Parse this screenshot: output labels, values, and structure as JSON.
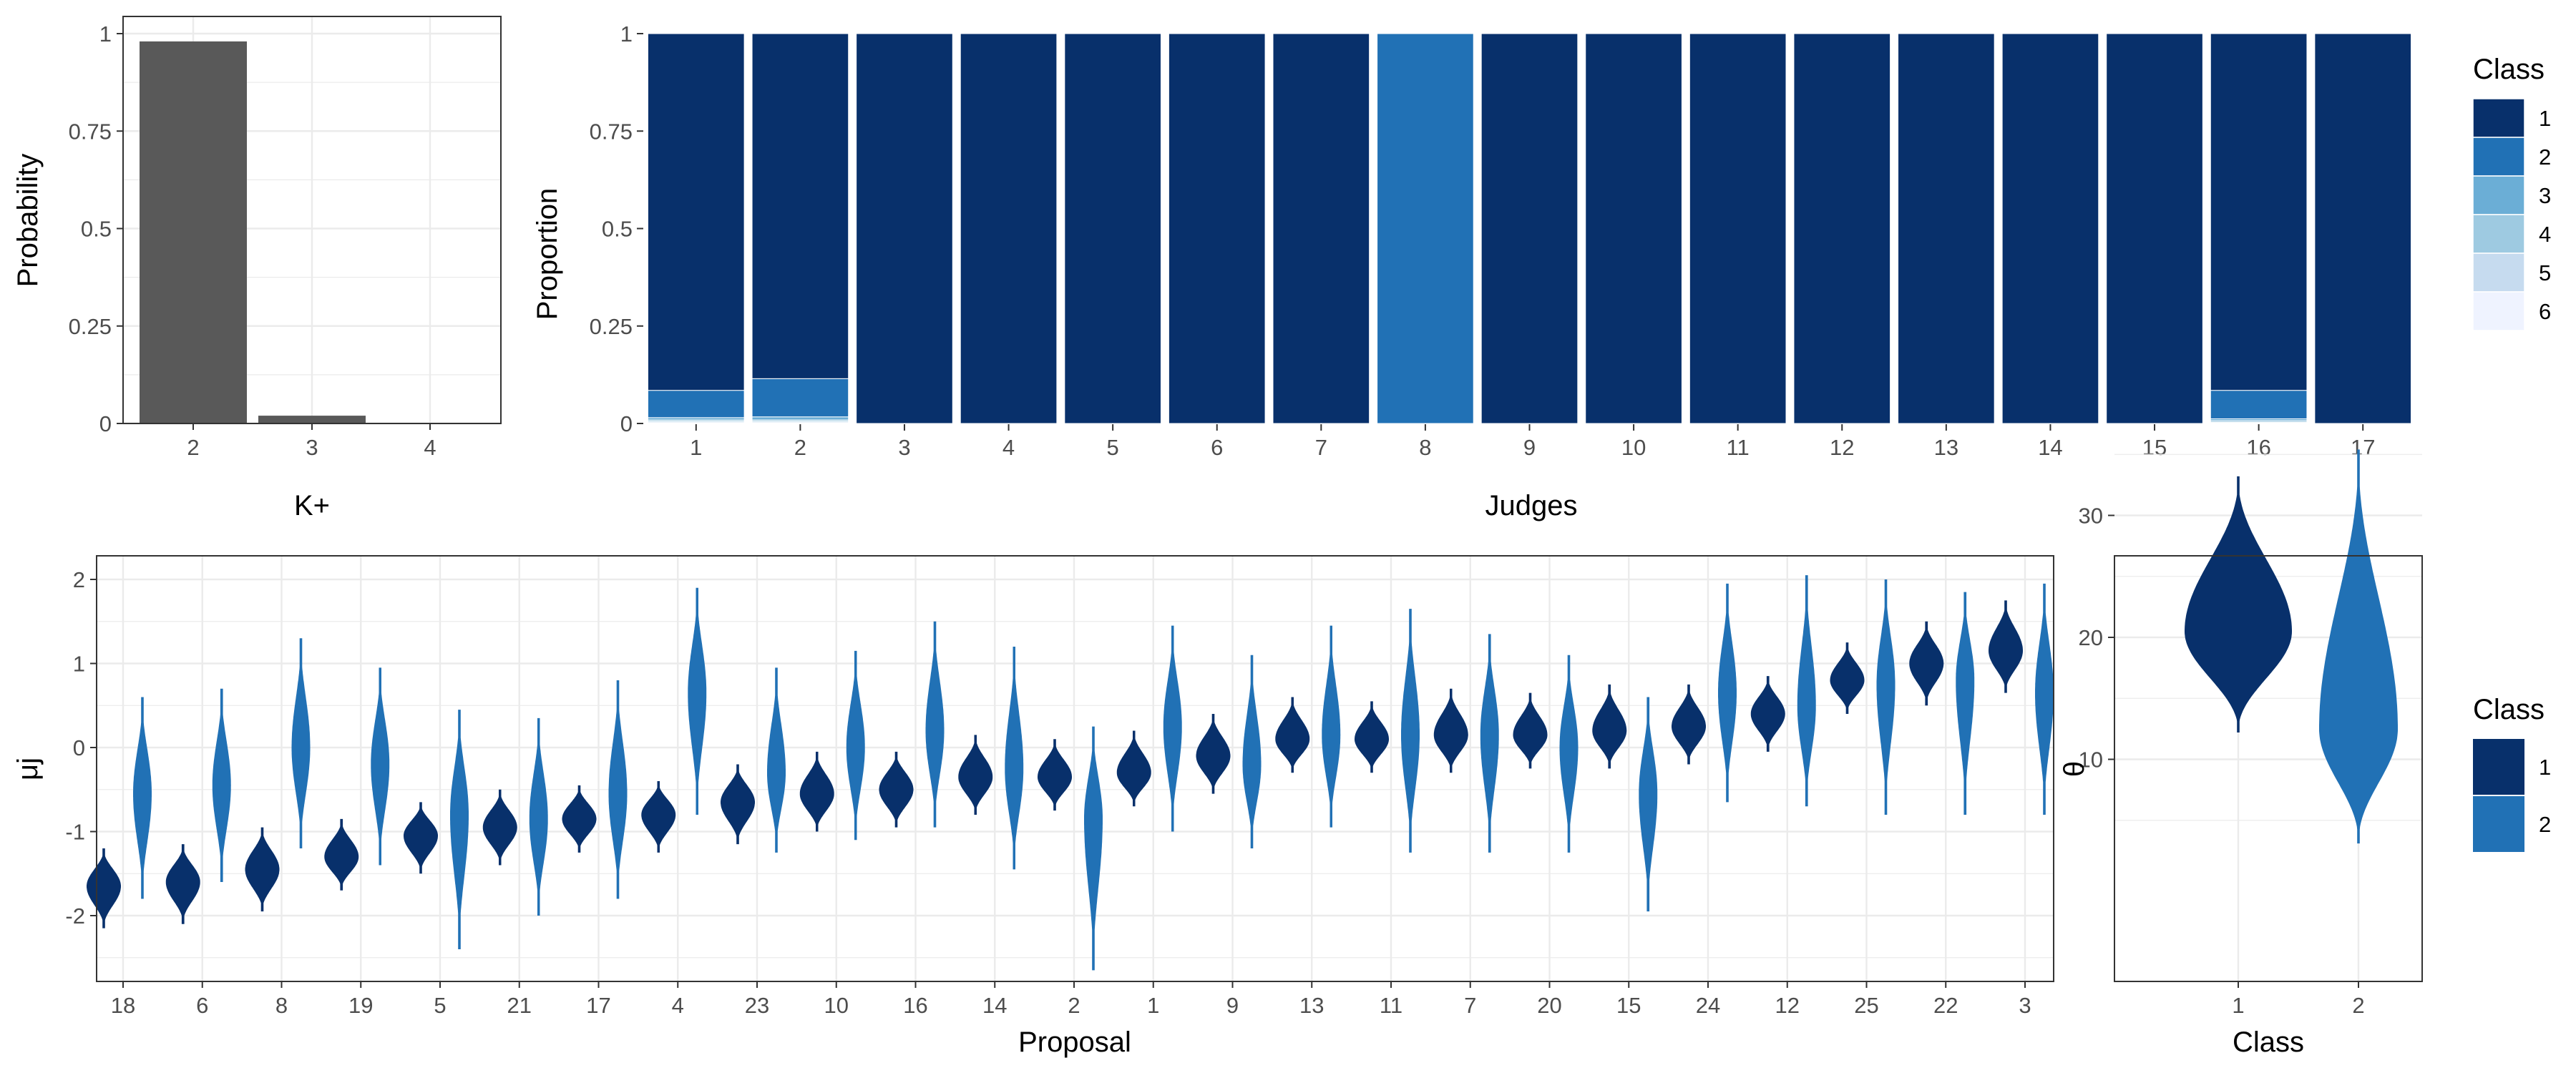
{
  "colors": {
    "class1": "#08306b",
    "class2": "#2171b5",
    "class3": "#6baed6",
    "class4": "#9ecae1",
    "class5": "#c6dbef",
    "class6": "#eff3ff",
    "bar_gray": "#595959",
    "grid": "#ebebeb",
    "border": "#333333"
  },
  "chart_data": [
    {
      "id": "kplus",
      "type": "bar",
      "title": "",
      "xlabel": "K+",
      "ylabel": "Probability",
      "categories": [
        "2",
        "3",
        "4"
      ],
      "values": [
        0.98,
        0.02,
        0.0
      ],
      "ylim": [
        0,
        1
      ],
      "yticks": [
        {
          "v": 0,
          "label": "0"
        },
        {
          "v": 0.25,
          "label": "0.25"
        },
        {
          "v": 0.5,
          "label": "0.5"
        },
        {
          "v": 0.75,
          "label": "0.75"
        },
        {
          "v": 1,
          "label": "1"
        }
      ],
      "grid": true
    },
    {
      "id": "judges",
      "type": "bar",
      "stacked": true,
      "title": "",
      "xlabel": "Judges",
      "ylabel": "Proportion",
      "categories": [
        "1",
        "2",
        "3",
        "4",
        "5",
        "6",
        "7",
        "8",
        "9",
        "10",
        "11",
        "12",
        "13",
        "14",
        "15",
        "16",
        "17"
      ],
      "series": [
        {
          "name": "1",
          "values": [
            0.915,
            0.885,
            1,
            1,
            1,
            1,
            1,
            0,
            1,
            1,
            1,
            1,
            1,
            1,
            1,
            0.915,
            1
          ]
        },
        {
          "name": "2",
          "values": [
            0.07,
            0.098,
            0,
            0,
            0,
            0,
            0,
            1,
            0,
            0,
            0,
            0,
            0,
            0,
            0,
            0.073,
            0
          ]
        },
        {
          "name": "3",
          "values": [
            0.006,
            0.008,
            0,
            0,
            0,
            0,
            0,
            0,
            0,
            0,
            0,
            0,
            0,
            0,
            0,
            0.005,
            0
          ]
        },
        {
          "name": "4",
          "values": [
            0.004,
            0.004,
            0,
            0,
            0,
            0,
            0,
            0,
            0,
            0,
            0,
            0,
            0,
            0,
            0,
            0.004,
            0
          ]
        },
        {
          "name": "5",
          "values": [
            0.003,
            0.003,
            0,
            0,
            0,
            0,
            0,
            0,
            0,
            0,
            0,
            0,
            0,
            0,
            0,
            0.002,
            0
          ]
        },
        {
          "name": "6",
          "values": [
            0.002,
            0.002,
            0,
            0,
            0,
            0,
            0,
            0,
            0,
            0,
            0,
            0,
            0,
            0,
            0,
            0.001,
            0
          ]
        }
      ],
      "ylim": [
        0,
        1
      ],
      "yticks": [
        {
          "v": 0,
          "label": "0"
        },
        {
          "v": 0.25,
          "label": "0.25"
        },
        {
          "v": 0.5,
          "label": "0.5"
        },
        {
          "v": 0.75,
          "label": "0.75"
        },
        {
          "v": 1,
          "label": "1"
        }
      ],
      "legend": {
        "title": "Class",
        "entries": [
          "1",
          "2",
          "3",
          "4",
          "5",
          "6"
        ],
        "position": "right"
      }
    },
    {
      "id": "mu",
      "type": "violin",
      "title": "",
      "xlabel": "Proposal",
      "ylabel": "μj",
      "categories": [
        "18",
        "6",
        "8",
        "19",
        "5",
        "21",
        "17",
        "4",
        "23",
        "10",
        "16",
        "14",
        "2",
        "1",
        "9",
        "13",
        "11",
        "7",
        "20",
        "15",
        "24",
        "12",
        "25",
        "22",
        "3"
      ],
      "series": [
        {
          "name": "1",
          "center": [
            -1.65,
            -1.6,
            -1.45,
            -1.3,
            -1.05,
            -0.95,
            -0.85,
            -0.8,
            -0.65,
            -0.55,
            -0.5,
            -0.35,
            -0.35,
            -0.3,
            -0.1,
            0.1,
            0.1,
            0.15,
            0.15,
            0.2,
            0.25,
            0.4,
            0.8,
            1.0,
            1.15
          ],
          "min": [
            -2.15,
            -2.1,
            -1.95,
            -1.7,
            -1.5,
            -1.4,
            -1.25,
            -1.25,
            -1.15,
            -1.0,
            -0.95,
            -0.8,
            -0.75,
            -0.7,
            -0.55,
            -0.3,
            -0.3,
            -0.3,
            -0.25,
            -0.25,
            -0.2,
            -0.05,
            0.4,
            0.5,
            0.65
          ],
          "max": [
            -1.2,
            -1.15,
            -0.95,
            -0.85,
            -0.65,
            -0.5,
            -0.45,
            -0.4,
            -0.2,
            -0.05,
            -0.05,
            0.15,
            0.1,
            0.2,
            0.4,
            0.6,
            0.55,
            0.7,
            0.65,
            0.75,
            0.75,
            0.85,
            1.25,
            1.5,
            1.75
          ]
        },
        {
          "name": "2",
          "center": [
            -0.55,
            -0.45,
            0.0,
            -0.2,
            -0.8,
            -0.85,
            -0.55,
            0.65,
            -0.3,
            0.0,
            0.2,
            -0.25,
            -0.85,
            0.25,
            -0.2,
            0.15,
            0.15,
            0.15,
            0.0,
            -0.55,
            0.65,
            0.5,
            0.75,
            0.8,
            0.65
          ],
          "min": [
            -1.8,
            -1.6,
            -1.2,
            -1.4,
            -2.4,
            -2.0,
            -1.8,
            -0.8,
            -1.25,
            -1.1,
            -0.95,
            -1.45,
            -2.65,
            -1.0,
            -1.2,
            -0.95,
            -1.25,
            -1.25,
            -1.25,
            -1.95,
            -0.65,
            -0.7,
            -0.8,
            -0.8,
            -0.8
          ],
          "max": [
            0.6,
            0.7,
            1.3,
            0.95,
            0.45,
            0.35,
            0.8,
            1.9,
            0.95,
            1.15,
            1.5,
            1.2,
            0.25,
            1.45,
            1.1,
            1.45,
            1.65,
            1.35,
            1.1,
            0.6,
            1.95,
            2.05,
            2.0,
            1.85,
            1.95
          ]
        }
      ],
      "ylim": [
        -2.8,
        2.25
      ],
      "yticks": [
        {
          "v": -2,
          "label": "-2"
        },
        {
          "v": -1,
          "label": "-1"
        },
        {
          "v": 0,
          "label": "0"
        },
        {
          "v": 1,
          "label": "1"
        },
        {
          "v": 2,
          "label": "2"
        }
      ]
    },
    {
      "id": "theta",
      "type": "violin",
      "title": "",
      "xlabel": "Class",
      "ylabel": "θ",
      "categories": [
        "1",
        "2"
      ],
      "series": [
        {
          "name": "1",
          "center": 20.5,
          "min": 12.2,
          "max": 33.2
        },
        {
          "name": "2",
          "center": 12.5,
          "min": 3.1,
          "max": 35.4
        }
      ],
      "ylim": [
        2,
        36.5
      ],
      "yticks": [
        {
          "v": 10,
          "label": "10"
        },
        {
          "v": 20,
          "label": "20"
        },
        {
          "v": 30,
          "label": "30"
        }
      ],
      "legend": {
        "title": "Class",
        "entries": [
          "1",
          "2"
        ],
        "position": "right"
      }
    }
  ]
}
